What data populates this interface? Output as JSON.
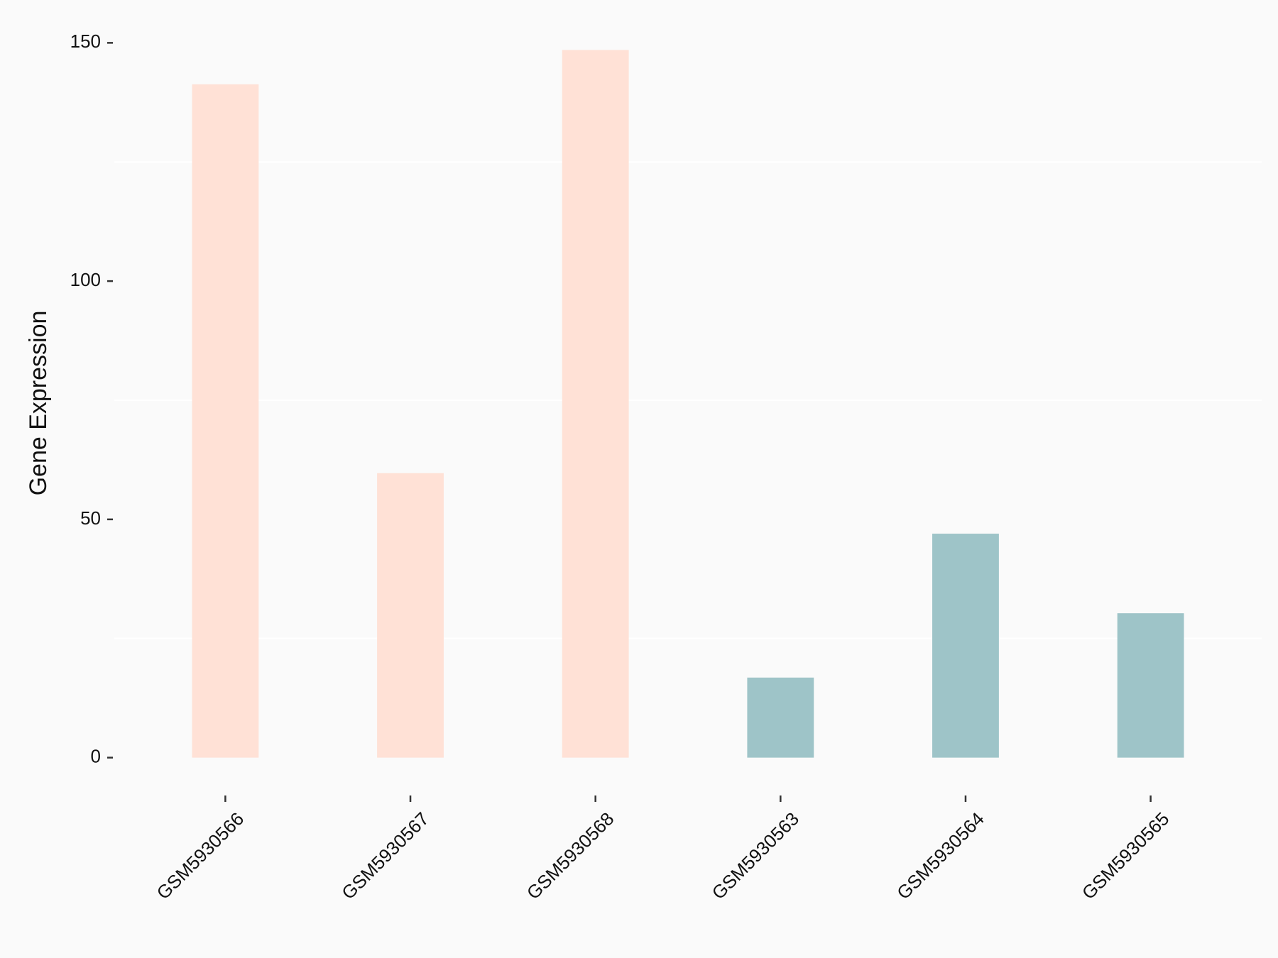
{
  "chart_data": {
    "type": "bar",
    "y_label": "Gene Expression",
    "categories": [
      "GSM5930566",
      "GSM5930567",
      "GSM5930568",
      "GSM5930563",
      "GSM5930564",
      "GSM5930565"
    ],
    "values": [
      141.3,
      59.7,
      148.5,
      16.8,
      47.0,
      30.3
    ],
    "colors": [
      "#ffe1d6",
      "#ffe1d6",
      "#ffe1d6",
      "#9ec4c8",
      "#9ec4c8",
      "#9ec4c8"
    ],
    "ylim": [
      -7.5,
      157.5
    ],
    "yticks": [
      0,
      50,
      100,
      150
    ],
    "minor_yticks": [
      25,
      75,
      125
    ],
    "grid": true
  }
}
